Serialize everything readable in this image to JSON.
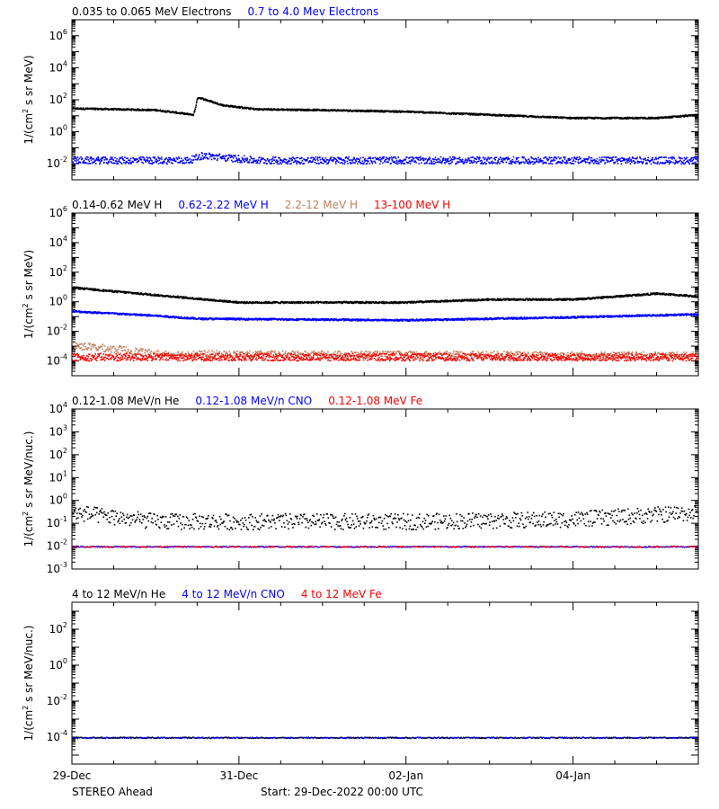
{
  "chart_data": [
    {
      "type": "scatter",
      "title": "",
      "yscale": "log",
      "ylabel_html": "1/(cm<sup>2</sup> s sr MeV)",
      "ylim_exp": [
        -3,
        7
      ],
      "yticks_exp": [
        -2,
        0,
        2,
        4,
        6
      ],
      "legend": [
        {
          "label": "0.035 to 0.065 MeV Electrons",
          "color": "#000000"
        },
        {
          "label": "0.7 to 4.0 Mev Electrons",
          "color": "#0000ff"
        }
      ],
      "series": [
        {
          "name": "0.035 to 0.065 MeV Electrons",
          "color": "#000000",
          "points_log10": [
            [
              0,
              1.5
            ],
            [
              0.5,
              1.45
            ],
            [
              1,
              1.4
            ],
            [
              1.3,
              1.2
            ],
            [
              1.45,
              1.1
            ],
            [
              1.5,
              2.2
            ],
            [
              1.8,
              1.7
            ],
            [
              2.2,
              1.45
            ],
            [
              3,
              1.4
            ],
            [
              4,
              1.3
            ],
            [
              5,
              1.1
            ],
            [
              6,
              0.9
            ],
            [
              7,
              0.9
            ],
            [
              7.5,
              1.1
            ]
          ],
          "spread": 0.05,
          "density": 6
        },
        {
          "name": "0.7 to 4.0 Mev Electrons",
          "color": "#0000ff",
          "points_log10": [
            [
              0,
              -1.75
            ],
            [
              1.4,
              -1.75
            ],
            [
              1.55,
              -1.45
            ],
            [
              2.2,
              -1.75
            ],
            [
              7.5,
              -1.75
            ]
          ],
          "spread": 0.22,
          "density": 5
        }
      ]
    },
    {
      "type": "scatter",
      "title": "",
      "yscale": "log",
      "ylabel_html": "1/(cm<sup>2</sup> s sr MeV)",
      "ylim_exp": [
        -5,
        6
      ],
      "yticks_exp": [
        -4,
        -2,
        0,
        2,
        4,
        6
      ],
      "legend": [
        {
          "label": "0.14-0.62 MeV H",
          "color": "#000000"
        },
        {
          "label": "0.62-2.22 MeV H",
          "color": "#0000ff"
        },
        {
          "label": "2.2-12 MeV H",
          "color": "#c08060"
        },
        {
          "label": "13-100 MeV H",
          "color": "#ff0000"
        }
      ],
      "series": [
        {
          "name": "0.14-0.62 MeV H",
          "color": "#000000",
          "points_log10": [
            [
              0,
              1.0
            ],
            [
              1,
              0.5
            ],
            [
              2,
              0.0
            ],
            [
              4,
              0.0
            ],
            [
              5,
              0.2
            ],
            [
              6,
              0.2
            ],
            [
              7,
              0.6
            ],
            [
              7.5,
              0.4
            ]
          ],
          "spread": 0.06,
          "density": 6
        },
        {
          "name": "0.62-2.22 MeV H",
          "color": "#0000ff",
          "points_log10": [
            [
              0,
              -0.6
            ],
            [
              1,
              -0.9
            ],
            [
              1.5,
              -1.1
            ],
            [
              4,
              -1.2
            ],
            [
              6,
              -1.0
            ],
            [
              7.5,
              -0.8
            ]
          ],
          "spread": 0.06,
          "density": 6
        },
        {
          "name": "2.2-12 MeV H",
          "color": "#c08060",
          "points_log10": [
            [
              0,
              -2.9
            ],
            [
              0.6,
              -3.2
            ],
            [
              1.0,
              -3.5
            ],
            [
              7.5,
              -3.6
            ]
          ],
          "spread": 0.25,
          "density": 4
        },
        {
          "name": "13-100 MeV H",
          "color": "#ff0000",
          "points_log10": [
            [
              0,
              -3.7
            ],
            [
              7.5,
              -3.7
            ]
          ],
          "spread": 0.25,
          "density": 5
        }
      ]
    },
    {
      "type": "scatter",
      "title": "",
      "yscale": "log",
      "ylabel_html": "1/(cm<sup>2</sup> s sr MeV/nuc.)",
      "ylim_exp": [
        -3,
        4
      ],
      "yticks_exp": [
        -3,
        -2,
        -1,
        0,
        1,
        2,
        3,
        4
      ],
      "legend": [
        {
          "label": "0.12-1.08 MeV/n He",
          "color": "#000000"
        },
        {
          "label": "0.12-1.08 MeV/n CNO",
          "color": "#0000ff"
        },
        {
          "label": "0.12-1.08 MeV Fe",
          "color": "#ff0000"
        }
      ],
      "series": [
        {
          "name": "0.12-1.08 MeV/n He",
          "color": "#000000",
          "points_log10": [
            [
              0,
              -0.5
            ],
            [
              1,
              -0.9
            ],
            [
              4,
              -0.9
            ],
            [
              6,
              -0.8
            ],
            [
              7.5,
              -0.5
            ]
          ],
          "spread": 0.35,
          "density": 3
        },
        {
          "name": "0.12-1.08 MeV/n CNO",
          "color": "#0000ff",
          "points_log10": [
            [
              0,
              -2.0
            ],
            [
              7.5,
              -2.0
            ]
          ],
          "spread": 0.02,
          "density": 2
        },
        {
          "name": "0.12-1.08 MeV Fe",
          "color": "#ff0000",
          "points_log10": [
            [
              0,
              -2.0
            ],
            [
              7.5,
              -2.0
            ]
          ],
          "spread": 0.02,
          "density": 1
        }
      ]
    },
    {
      "type": "scatter",
      "title": "",
      "yscale": "log",
      "ylabel_html": "1/(cm<sup>2</sup> s sr MeV/nuc.)",
      "ylim_exp": [
        -5.5,
        3.5
      ],
      "yticks_exp": [
        -4,
        -2,
        0,
        2
      ],
      "legend": [
        {
          "label": "4 to 12 MeV/n He",
          "color": "#000000"
        },
        {
          "label": "4 to 12 MeV/n CNO",
          "color": "#0000ff"
        },
        {
          "label": "4 to 12 MeV Fe",
          "color": "#ff0000"
        }
      ],
      "series": [
        {
          "name": "4 to 12 MeV/n He",
          "color": "#000000",
          "points_log10": [
            [
              0,
              -4.0
            ],
            [
              7.5,
              -4.0
            ]
          ],
          "spread": 0.03,
          "density": 2
        },
        {
          "name": "4 to 12 MeV/n CNO",
          "color": "#0000ff",
          "points_log10": [
            [
              0,
              -4.0
            ],
            [
              7.5,
              -4.0
            ]
          ],
          "spread": 0.02,
          "density": 1
        }
      ]
    }
  ],
  "x_axis": {
    "unit": "days from 29-Dec-2022 00:00 UTC",
    "xlim_days": [
      0,
      7.5
    ],
    "tick_labels": [
      {
        "day": 0,
        "label": "29-Dec"
      },
      {
        "day": 2,
        "label": "31-Dec"
      },
      {
        "day": 4,
        "label": "02-Jan"
      },
      {
        "day": 6,
        "label": "04-Jan"
      }
    ],
    "minor_step_days": 0.5
  },
  "footer": {
    "spacecraft": "STEREO Ahead",
    "start": "Start: 29-Dec-2022 00:00 UTC"
  }
}
